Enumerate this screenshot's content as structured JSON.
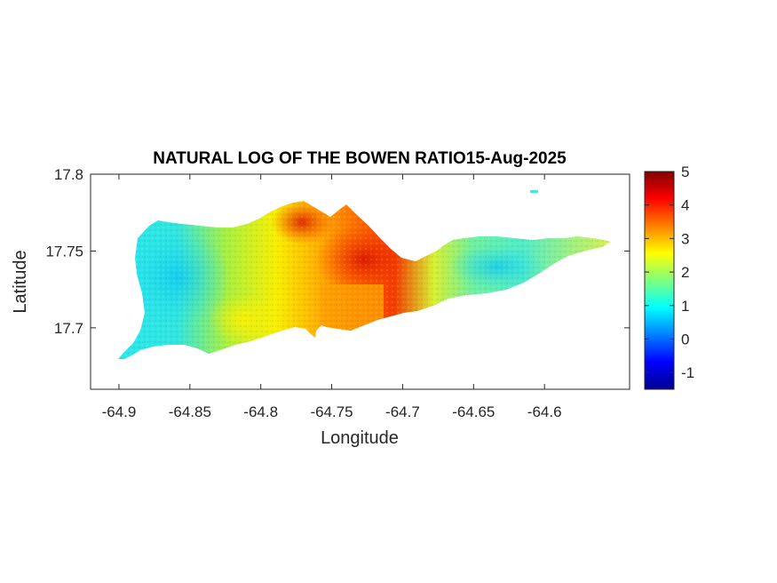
{
  "figure": {
    "title": "NATURAL LOG OF THE BOWEN RATIO15-Aug-2025",
    "xlabel": "Longitude",
    "ylabel": "Latitude"
  },
  "chart_data": {
    "type": "heatmap",
    "title": "NATURAL LOG OF THE BOWEN RATIO15-Aug-2025",
    "xlabel": "Longitude",
    "ylabel": "Latitude",
    "xlim": [
      -64.92,
      -64.54
    ],
    "ylim": [
      17.66,
      17.8
    ],
    "x_ticks": [
      -64.9,
      -64.85,
      -64.8,
      -64.75,
      -64.7,
      -64.65,
      -64.6
    ],
    "x_tick_labels": [
      "-64.9",
      "-64.85",
      "-64.8",
      "-64.75",
      "-64.7",
      "-64.65",
      "-64.6"
    ],
    "y_ticks": [
      17.7,
      17.75,
      17.8
    ],
    "y_tick_labels": [
      "17.7",
      "17.75",
      "17.8"
    ],
    "colormap": "jet",
    "clim": [
      -1.5,
      5
    ],
    "colorbar_ticks": [
      -1,
      0,
      1,
      2,
      3,
      4,
      5
    ],
    "colorbar_tick_labels": [
      "-1",
      "0",
      "1",
      "2",
      "3",
      "4",
      "5"
    ],
    "grid": false,
    "region_value_profile": [
      {
        "lon": -64.9,
        "value": 1.1
      },
      {
        "lon": -64.87,
        "value": 1.0
      },
      {
        "lon": -64.85,
        "value": 1.6
      },
      {
        "lon": -64.83,
        "value": 2.2
      },
      {
        "lon": -64.8,
        "value": 2.8
      },
      {
        "lon": -64.78,
        "value": 3.5
      },
      {
        "lon": -64.75,
        "value": 3.9
      },
      {
        "lon": -64.73,
        "value": 4.3
      },
      {
        "lon": -64.71,
        "value": 3.8
      },
      {
        "lon": -64.69,
        "value": 2.5
      },
      {
        "lon": -64.67,
        "value": 1.9
      },
      {
        "lon": -64.65,
        "value": 1.6
      },
      {
        "lon": -64.62,
        "value": 1.7
      },
      {
        "lon": -64.6,
        "value": 2.2
      },
      {
        "lon": -64.57,
        "value": 2.3
      }
    ]
  }
}
